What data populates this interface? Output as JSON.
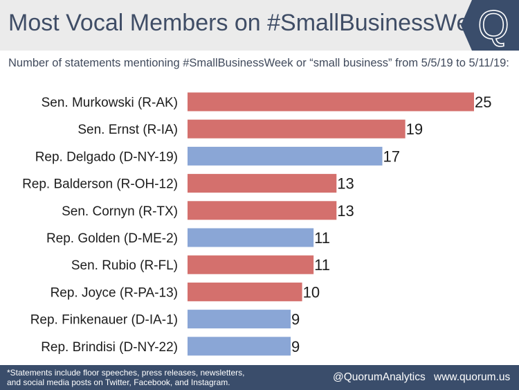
{
  "header": {
    "title": "Most Vocal Members on #SmallBusinessWeek",
    "logo_letter": "Q"
  },
  "subtitle": "Number of statements mentioning #SmallBusinessWeek or “small business” from 5/5/19 to 5/11/19:",
  "footer": {
    "footnote_line1": "*Statements include floor speeches, press releases, newsletters,",
    "footnote_line2": "and social media posts on Twitter, Facebook, and Instagram.",
    "handle": "@QuorumAnalytics",
    "website": "www.quorum.us"
  },
  "colors": {
    "republican": "#d4706d",
    "democrat": "#8aa6d6",
    "header_bg": "#ebebeb",
    "footer_bg": "#3a4d6b",
    "logo_bg": "#3a4d6b"
  },
  "chart_data": {
    "type": "bar",
    "orientation": "horizontal",
    "title": "Most Vocal Members on #SmallBusinessWeek",
    "xlabel": "",
    "ylabel": "",
    "xlim": [
      0,
      25
    ],
    "categories": [
      "Sen. Murkowski (R-AK)",
      "Sen. Ernst (R-IA)",
      "Rep. Delgado (D-NY-19)",
      "Rep. Balderson (R-OH-12)",
      "Sen. Cornyn (R-TX)",
      "Rep. Golden (D-ME-2)",
      "Sen. Rubio (R-FL)",
      "Rep. Joyce (R-PA-13)",
      "Rep. Finkenauer (D-IA-1)",
      "Rep. Brindisi (D-NY-22)"
    ],
    "values": [
      25,
      19,
      17,
      13,
      13,
      11,
      11,
      10,
      9,
      9
    ],
    "party": [
      "R",
      "R",
      "D",
      "R",
      "R",
      "D",
      "R",
      "R",
      "D",
      "D"
    ]
  }
}
